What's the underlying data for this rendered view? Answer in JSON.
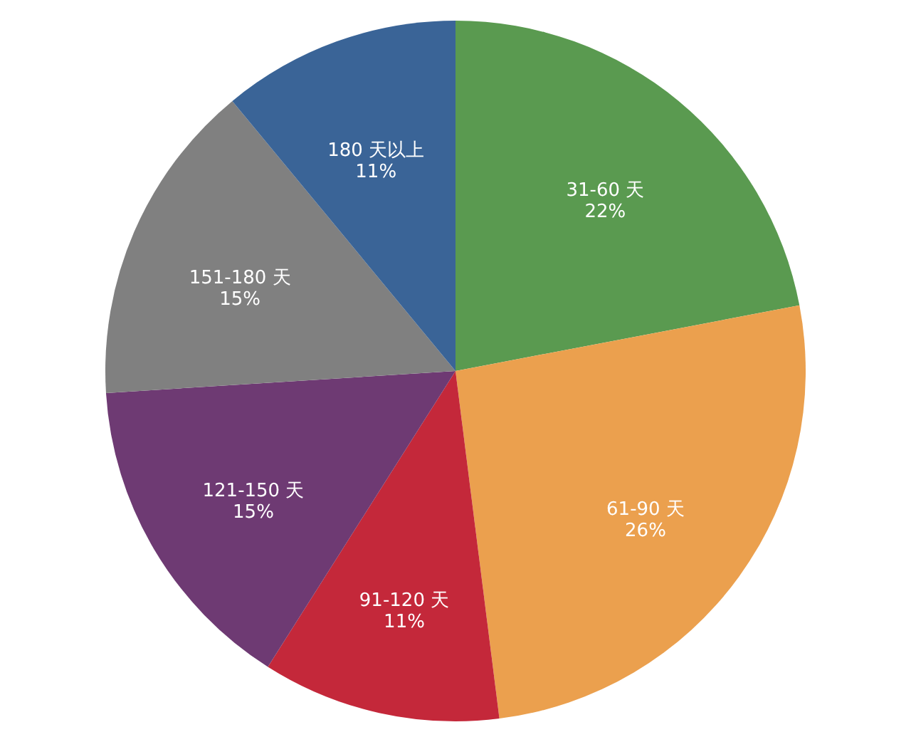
{
  "chart_data": {
    "type": "pie",
    "categories": [
      "31-60 天",
      "61-90 天",
      "91-120 天",
      "121-150 天",
      "151-180 天",
      "180 天以上"
    ],
    "values": [
      22,
      26,
      11,
      15,
      15,
      11
    ],
    "value_labels": [
      "22%",
      "26%",
      "11%",
      "15%",
      "15%",
      "11%"
    ],
    "colors": [
      "#5a9a50",
      "#eba04e",
      "#c4283a",
      "#6e3a73",
      "#808080",
      "#3a6497"
    ]
  }
}
